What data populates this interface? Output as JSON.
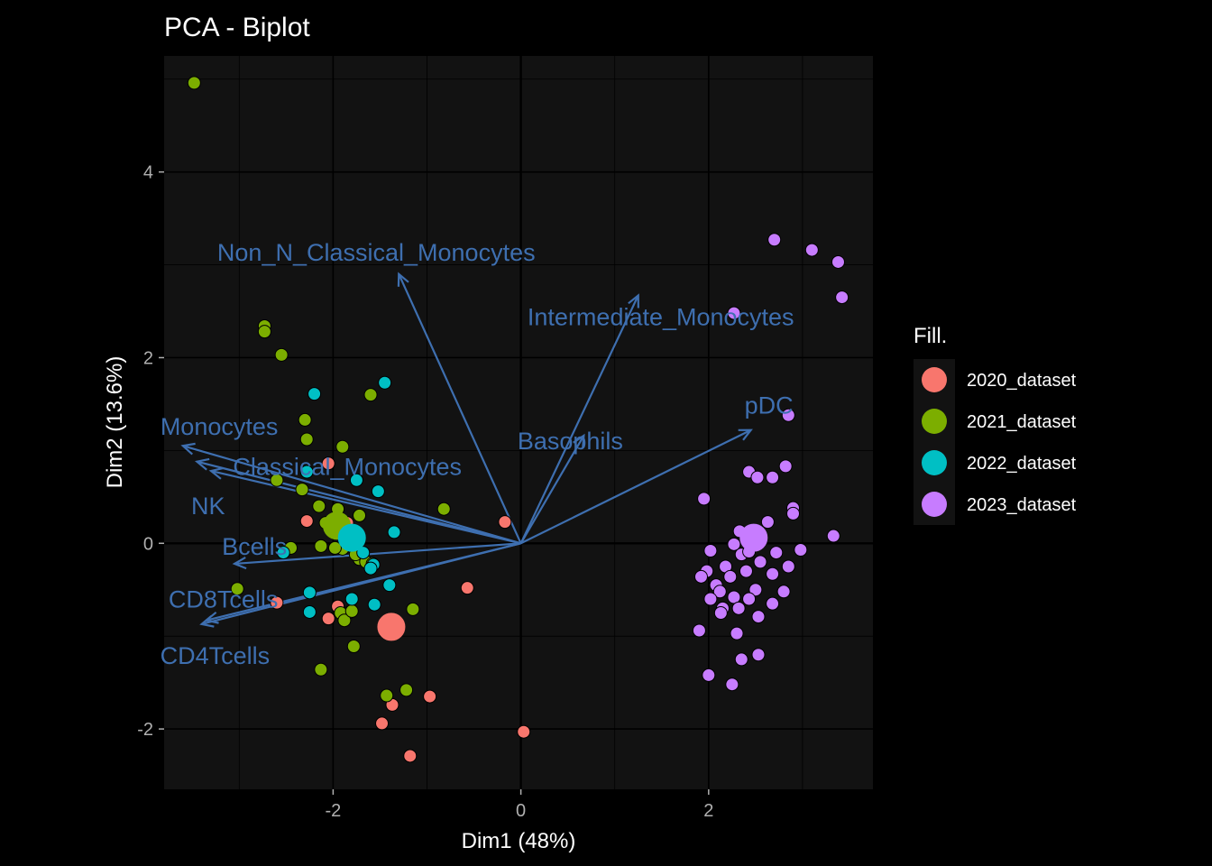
{
  "chart_data": {
    "type": "scatter",
    "title": "PCA - Biplot",
    "xlabel": "Dim1 (48%)",
    "ylabel": "Dim2 (13.6%)",
    "xlim": [
      -3.8,
      3.75
    ],
    "ylim": [
      -2.65,
      5.25
    ],
    "x_ticks": [
      -2,
      0,
      2
    ],
    "y_ticks": [
      -2,
      0,
      2,
      4
    ],
    "grid": true,
    "legend_title": "Fill.",
    "legend_position": "right",
    "series": [
      {
        "name": "2020_dataset",
        "color": "#F8766D",
        "points": [
          [
            -2.28,
            0.24
          ],
          [
            -2.05,
            0.86
          ],
          [
            -2.05,
            -0.81
          ],
          [
            -1.95,
            -0.68
          ],
          [
            -2.6,
            -0.64
          ],
          [
            -1.82,
            -0.74
          ],
          [
            -1.4,
            -0.92
          ],
          [
            -1.37,
            -1.74
          ],
          [
            -1.48,
            -1.94
          ],
          [
            -1.18,
            -2.29
          ],
          [
            -0.97,
            -1.65
          ],
          [
            -0.57,
            -0.48
          ],
          [
            -0.17,
            0.23
          ],
          [
            0.03,
            -2.03
          ],
          [
            -1.85,
            0.22
          ],
          [
            -1.78,
            -0.05
          ]
        ],
        "centroid": [
          -1.38,
          -0.9
        ]
      },
      {
        "name": "2021_dataset",
        "color": "#7CAE00",
        "points": [
          [
            -3.48,
            4.96
          ],
          [
            -2.73,
            2.34
          ],
          [
            -2.73,
            2.28
          ],
          [
            -2.55,
            2.03
          ],
          [
            -1.6,
            1.6
          ],
          [
            -2.3,
            1.33
          ],
          [
            -2.28,
            1.12
          ],
          [
            -1.9,
            1.04
          ],
          [
            -2.6,
            0.68
          ],
          [
            -2.33,
            0.58
          ],
          [
            -0.82,
            0.37
          ],
          [
            -2.15,
            0.4
          ],
          [
            -1.95,
            0.37
          ],
          [
            -2.08,
            0.22
          ],
          [
            -1.72,
            0.3
          ],
          [
            -1.88,
            0.14
          ],
          [
            -2.45,
            -0.05
          ],
          [
            -2.13,
            -0.03
          ],
          [
            -1.9,
            -0.06
          ],
          [
            -1.98,
            -0.05
          ],
          [
            -1.7,
            -0.1
          ],
          [
            -1.72,
            -0.17
          ],
          [
            -1.65,
            -0.2
          ],
          [
            -1.58,
            -0.22
          ],
          [
            -1.76,
            -0.12
          ],
          [
            -3.02,
            -0.49
          ],
          [
            -1.92,
            -0.75
          ],
          [
            -1.88,
            -0.83
          ],
          [
            -1.8,
            -0.73
          ],
          [
            -1.15,
            -0.71
          ],
          [
            -1.78,
            -1.11
          ],
          [
            -2.13,
            -1.36
          ],
          [
            -1.43,
            -1.64
          ],
          [
            -1.22,
            -1.58
          ]
        ],
        "centroid": [
          -1.96,
          0.19
        ]
      },
      {
        "name": "2022_dataset",
        "color": "#00BFC4",
        "points": [
          [
            -2.2,
            1.61
          ],
          [
            -1.45,
            1.73
          ],
          [
            -2.28,
            0.77
          ],
          [
            -1.75,
            0.68
          ],
          [
            -1.52,
            0.56
          ],
          [
            -1.35,
            0.12
          ],
          [
            -1.68,
            -0.1
          ],
          [
            -1.57,
            -0.23
          ],
          [
            -1.6,
            -0.27
          ],
          [
            -2.53,
            -0.1
          ],
          [
            -2.25,
            -0.53
          ],
          [
            -1.4,
            -0.45
          ],
          [
            -1.8,
            -0.6
          ],
          [
            -1.56,
            -0.66
          ],
          [
            -2.25,
            -0.74
          ]
        ],
        "centroid": [
          -1.8,
          0.06
        ]
      },
      {
        "name": "2023_dataset",
        "color": "#C77CFF",
        "points": [
          [
            2.7,
            3.27
          ],
          [
            3.1,
            3.16
          ],
          [
            3.38,
            3.03
          ],
          [
            3.42,
            2.65
          ],
          [
            2.27,
            2.48
          ],
          [
            2.85,
            1.38
          ],
          [
            2.82,
            0.83
          ],
          [
            2.43,
            0.77
          ],
          [
            2.68,
            0.71
          ],
          [
            2.52,
            0.71
          ],
          [
            1.95,
            0.48
          ],
          [
            2.9,
            0.38
          ],
          [
            2.9,
            0.32
          ],
          [
            2.63,
            0.23
          ],
          [
            2.33,
            0.13
          ],
          [
            3.33,
            0.08
          ],
          [
            2.27,
            -0.01
          ],
          [
            2.02,
            -0.08
          ],
          [
            2.35,
            -0.12
          ],
          [
            2.43,
            -0.09
          ],
          [
            2.72,
            -0.1
          ],
          [
            2.98,
            -0.07
          ],
          [
            2.55,
            -0.2
          ],
          [
            2.18,
            -0.25
          ],
          [
            2.85,
            -0.25
          ],
          [
            1.98,
            -0.3
          ],
          [
            2.4,
            -0.3
          ],
          [
            2.68,
            -0.33
          ],
          [
            2.23,
            -0.36
          ],
          [
            1.92,
            -0.36
          ],
          [
            2.08,
            -0.45
          ],
          [
            2.5,
            -0.5
          ],
          [
            2.12,
            -0.52
          ],
          [
            2.8,
            -0.52
          ],
          [
            2.27,
            -0.58
          ],
          [
            2.43,
            -0.6
          ],
          [
            2.02,
            -0.6
          ],
          [
            2.68,
            -0.65
          ],
          [
            2.32,
            -0.7
          ],
          [
            2.15,
            -0.7
          ],
          [
            2.13,
            -0.75
          ],
          [
            2.53,
            -0.79
          ],
          [
            1.9,
            -0.94
          ],
          [
            2.3,
            -0.97
          ],
          [
            2.53,
            -1.2
          ],
          [
            2.35,
            -1.25
          ],
          [
            2.0,
            -1.42
          ],
          [
            2.25,
            -1.52
          ]
        ],
        "centroid": [
          2.48,
          0.06
        ]
      }
    ],
    "loadings": [
      {
        "name": "Non_N_Classical_Monocytes",
        "x": -1.3,
        "y": 2.9
      },
      {
        "name": "Intermediate_Monocytes",
        "x": 1.25,
        "y": 2.67
      },
      {
        "name": "Basophils",
        "x": 0.67,
        "y": 1.16
      },
      {
        "name": "pDC",
        "x": 2.45,
        "y": 1.22
      },
      {
        "name": "Monocytes",
        "x": -3.6,
        "y": 1.05
      },
      {
        "name": "Classical_Monocytes",
        "x": -3.45,
        "y": 0.88
      },
      {
        "name": "NK",
        "x": -3.3,
        "y": 0.78
      },
      {
        "name": "Bcells",
        "x": -3.05,
        "y": -0.22
      },
      {
        "name": "CD8Tcells",
        "x": -3.35,
        "y": -0.83
      },
      {
        "name": "CD4Tcells",
        "x": -3.4,
        "y": -0.87
      }
    ],
    "arrow_color": "#3E6FB0"
  }
}
